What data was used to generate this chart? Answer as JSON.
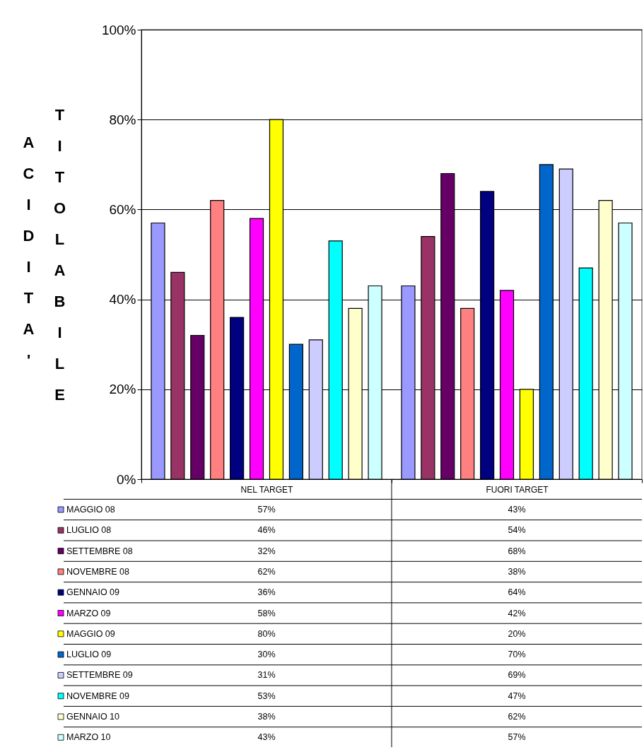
{
  "chart_data": {
    "type": "bar",
    "ylabel": "ACIDITA' TITOLABILE",
    "categories": [
      "NEL TARGET",
      "FUORI TARGET"
    ],
    "ylim": [
      0,
      100
    ],
    "yticks": [
      {
        "value": 0,
        "label": "0%"
      },
      {
        "value": 20,
        "label": "20%"
      },
      {
        "value": 40,
        "label": "40%"
      },
      {
        "value": 60,
        "label": "60%"
      },
      {
        "value": 80,
        "label": "80%"
      },
      {
        "value": 100,
        "label": "100%"
      }
    ],
    "grid": "y",
    "legend": "bottom left",
    "series": [
      {
        "name": "MAGGIO 08",
        "color": "#9999ff",
        "values": [
          57,
          43
        ],
        "value_labels": [
          "57%",
          "43%"
        ]
      },
      {
        "name": "LUGLIO 08",
        "color": "#993366",
        "values": [
          46,
          54
        ],
        "value_labels": [
          "46%",
          "54%"
        ]
      },
      {
        "name": "SETTEMBRE 08",
        "color": "#660066",
        "values": [
          32,
          68
        ],
        "value_labels": [
          "32%",
          "68%"
        ]
      },
      {
        "name": "NOVEMBRE 08",
        "color": "#ff8080",
        "values": [
          62,
          38
        ],
        "value_labels": [
          "62%",
          "38%"
        ]
      },
      {
        "name": "GENNAIO 09",
        "color": "#000080",
        "values": [
          36,
          64
        ],
        "value_labels": [
          "36%",
          "64%"
        ]
      },
      {
        "name": "MARZO 09",
        "color": "#ff00ff",
        "values": [
          58,
          42
        ],
        "value_labels": [
          "58%",
          "42%"
        ]
      },
      {
        "name": "MAGGIO 09",
        "color": "#ffff00",
        "values": [
          80,
          20
        ],
        "value_labels": [
          "80%",
          "20%"
        ]
      },
      {
        "name": "LUGLIO 09",
        "color": "#0066cc",
        "values": [
          30,
          70
        ],
        "value_labels": [
          "30%",
          "70%"
        ]
      },
      {
        "name": "SETTEMBRE 09",
        "color": "#ccccff",
        "values": [
          31,
          69
        ],
        "value_labels": [
          "31%",
          "69%"
        ]
      },
      {
        "name": "NOVEMBRE 09",
        "color": "#00ffff",
        "values": [
          53,
          47
        ],
        "value_labels": [
          "53%",
          "47%"
        ]
      },
      {
        "name": "GENNAIO 10",
        "color": "#ffffcc",
        "values": [
          38,
          62
        ],
        "value_labels": [
          "38%",
          "62%"
        ]
      },
      {
        "name": "MARZO 10",
        "color": "#ccffff",
        "values": [
          43,
          57
        ],
        "value_labels": [
          "43%",
          "57%"
        ]
      }
    ]
  }
}
